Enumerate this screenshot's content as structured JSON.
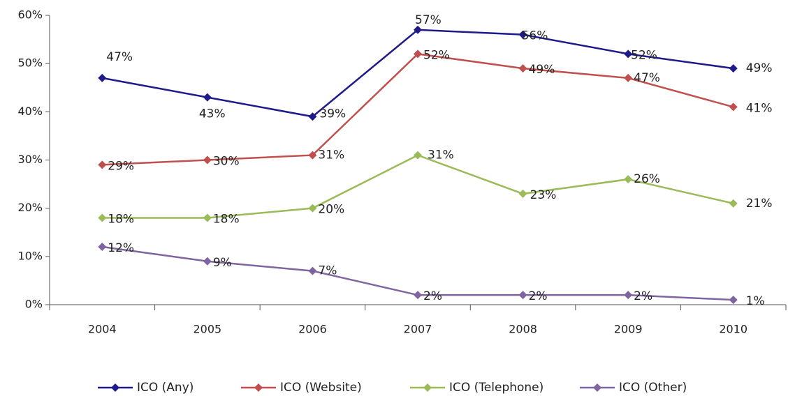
{
  "chart_data": {
    "type": "line",
    "categories": [
      "2004",
      "2005",
      "2006",
      "2007",
      "2008",
      "2009",
      "2010"
    ],
    "series": [
      {
        "name": "ICO (Any)",
        "color": "#1f1a8a",
        "values": [
          47,
          43,
          39,
          57,
          56,
          52,
          49
        ],
        "value_labels": [
          "47%",
          "43%",
          "39%",
          "57%",
          "56%",
          "52%",
          "49%"
        ]
      },
      {
        "name": "ICO (Website)",
        "color": "#c0504d",
        "values": [
          29,
          30,
          31,
          52,
          49,
          47,
          41
        ],
        "value_labels": [
          "29%",
          "30%",
          "31%",
          "52%",
          "49%",
          "47%",
          "41%"
        ]
      },
      {
        "name": "ICO (Telephone)",
        "color": "#9bbb59",
        "values": [
          18,
          18,
          20,
          31,
          23,
          26,
          21
        ],
        "value_labels": [
          "18%",
          "18%",
          "20%",
          "31%",
          "23%",
          "26%",
          "21%"
        ]
      },
      {
        "name": "ICO (Other)",
        "color": "#8064a2",
        "values": [
          12,
          9,
          7,
          2,
          2,
          2,
          1
        ],
        "value_labels": [
          "12%",
          "9%",
          "7%",
          "2%",
          "2%",
          "2%",
          "1%"
        ]
      }
    ],
    "ylim": [
      0,
      60
    ],
    "yticks": [
      {
        "value": 0,
        "label": "0%"
      },
      {
        "value": 10,
        "label": "10%"
      },
      {
        "value": 20,
        "label": "20%"
      },
      {
        "value": 30,
        "label": "30%"
      },
      {
        "value": 40,
        "label": "40%"
      },
      {
        "value": 50,
        "label": "50%"
      },
      {
        "value": 60,
        "label": "60%"
      }
    ],
    "legend": "bottom"
  }
}
